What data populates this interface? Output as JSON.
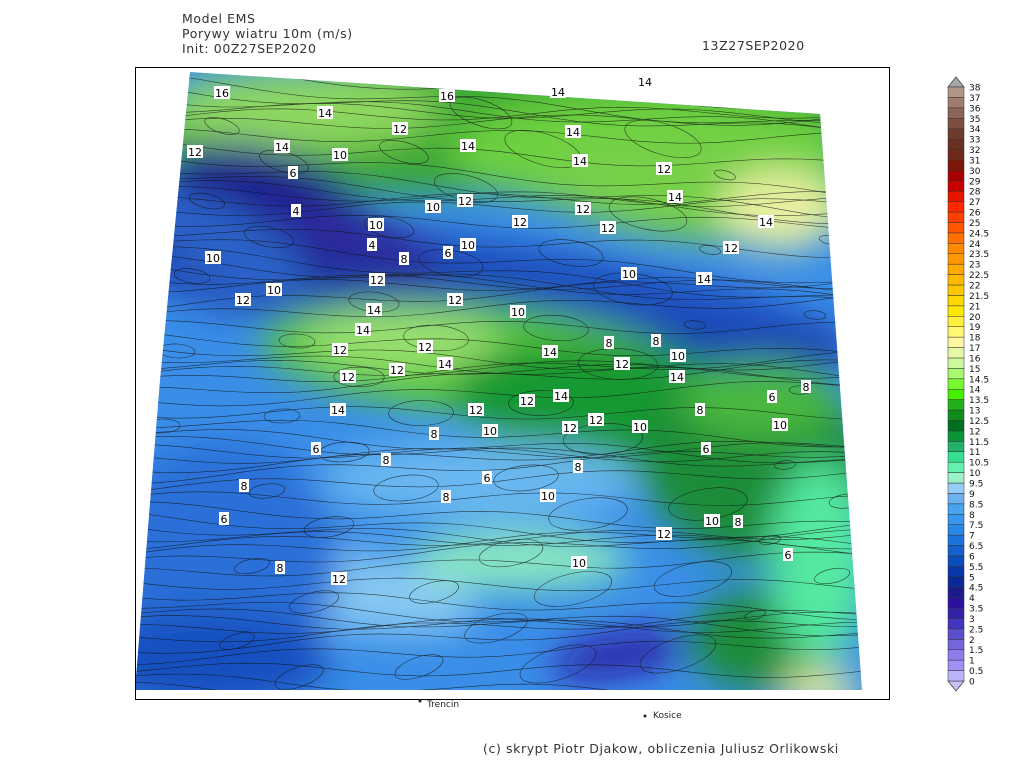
{
  "header": {
    "model": "Model EMS",
    "variable": "Porywy wiatru 10m (m/s)",
    "init": "Init: 00Z27SEP2020",
    "valid_time": "13Z27SEP2020"
  },
  "colorbar": {
    "labels": [
      "0",
      "0.5",
      "1",
      "1.5",
      "2",
      "2.5",
      "3",
      "3.5",
      "4",
      "4.5",
      "5",
      "5.5",
      "6",
      "6.5",
      "7",
      "7.5",
      "8",
      "8.5",
      "9",
      "9.5",
      "10",
      "10.5",
      "11",
      "11.5",
      "12",
      "12.5",
      "13",
      "13.5",
      "14",
      "14.5",
      "15",
      "16",
      "17",
      "18",
      "19",
      "20",
      "21",
      "21.5",
      "22",
      "22.5",
      "23",
      "23.5",
      "24",
      "24.5",
      "25",
      "26",
      "27",
      "28",
      "29",
      "30",
      "31",
      "32",
      "33",
      "34",
      "35",
      "36",
      "37",
      "38"
    ],
    "colors": [
      "#bcb4fb",
      "#a090f5",
      "#8c7be8",
      "#7466dc",
      "#5b4fd0",
      "#4235c0",
      "#3222a8",
      "#2a109c",
      "#1a1a8c",
      "#0a2896",
      "#0838a8",
      "#0a4cbc",
      "#1460cc",
      "#1c72dc",
      "#2888e8",
      "#3896ee",
      "#4aa2ee",
      "#6cb2f2",
      "#96ccf8",
      "#9cf2c8",
      "#66f0b0",
      "#34e090",
      "#22b06a",
      "#0c9438",
      "#007020",
      "#108c1a",
      "#22b01a",
      "#44f000",
      "#78fa30",
      "#a8f870",
      "#ccf8a0",
      "#e8f8a8",
      "#fff8a0",
      "#fff870",
      "#fff040",
      "#ffe800",
      "#ffd800",
      "#ffc800",
      "#ffb800",
      "#ffa800",
      "#ff9800",
      "#ff8a00",
      "#ff7000",
      "#ff5800",
      "#ff4000",
      "#ff2800",
      "#e81400",
      "#c80000",
      "#a80000",
      "#7c1808",
      "#702818",
      "#683020",
      "#6c3c2c",
      "#7c5040",
      "#8c6458",
      "#a07c70",
      "#b09488"
    ],
    "over_color": "#a8a8a8",
    "under_color": "#c8c0f8"
  },
  "map": {
    "contour_labels": [
      "16",
      "14",
      "12",
      "16",
      "14",
      "14",
      "14",
      "12",
      "14",
      "10",
      "14",
      "14",
      "12",
      "12",
      "14",
      "14",
      "6",
      "4",
      "4",
      "10",
      "10",
      "12",
      "12",
      "10",
      "8",
      "10",
      "10",
      "12",
      "6",
      "12",
      "12",
      "14",
      "12",
      "10",
      "10",
      "12",
      "14",
      "14",
      "12",
      "12",
      "14",
      "14",
      "8",
      "8",
      "10",
      "12",
      "14",
      "12",
      "12",
      "14",
      "12",
      "12",
      "14",
      "12",
      "10",
      "8",
      "6",
      "8",
      "10",
      "8",
      "10",
      "12",
      "6",
      "8",
      "6",
      "6",
      "8",
      "8",
      "10",
      "10",
      "8",
      "12",
      "6",
      "10",
      "6",
      "8",
      "8",
      "12"
    ],
    "cities": [
      "Trencin",
      "Kosice"
    ]
  },
  "credit": "(c) skrypt Piotr Djakow, obliczenia Juliusz Orlikowski"
}
